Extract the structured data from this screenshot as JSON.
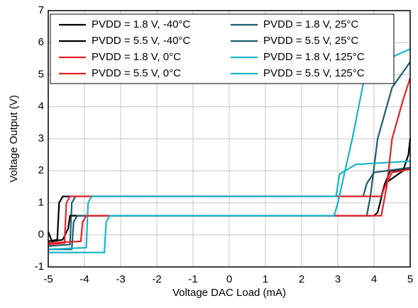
{
  "chart_data": {
    "type": "line",
    "x_label": "Voltage DAC Load (mA)",
    "y_label": "Voltage Output (V)",
    "xlim": [
      -5,
      5
    ],
    "ylim": [
      -1,
      7
    ],
    "xticks": [
      -5,
      -4,
      -3,
      -2,
      -1,
      0,
      1,
      2,
      3,
      4,
      5
    ],
    "yticks": [
      -1,
      0,
      1,
      2,
      3,
      4,
      5,
      6,
      7
    ],
    "grid": true,
    "legend": "upper left",
    "series": [
      {
        "name": "PVDD = 1.8 V, -40°C",
        "color": "#000000",
        "x": [
          -5,
          -4.75,
          -4.7,
          -4.6,
          4.2,
          4.3,
          4.45,
          5
        ],
        "values": [
          -0.2,
          -0.15,
          1.0,
          1.2,
          1.2,
          1.6,
          2.0,
          2.05
        ]
      },
      {
        "name": "PVDD = 1.8 V, 25°C",
        "color": "#1d5c6e",
        "x": [
          -5,
          -4.4,
          -4.35,
          -4.25,
          3.7,
          3.8,
          4.0,
          5
        ],
        "values": [
          -0.35,
          -0.3,
          1.0,
          1.2,
          1.2,
          1.6,
          1.95,
          2.1
        ]
      },
      {
        "name": "PVDD = 5.5 V, -40°C",
        "color": "#000000",
        "x": [
          -5,
          -4.9,
          -4.6,
          -4.45,
          -4.4,
          4.0,
          4.1,
          4.3,
          4.8,
          4.95,
          5
        ],
        "values": [
          0.1,
          -0.2,
          -0.15,
          0.2,
          0.6,
          0.6,
          0.7,
          1.6,
          2.0,
          2.5,
          3.0
        ]
      },
      {
        "name": "PVDD = 5.5 V, 25°C",
        "color": "#1d5c6e",
        "x": [
          -5,
          -4.35,
          -4.3,
          -4.2,
          3.8,
          3.9,
          4.1,
          4.5,
          5
        ],
        "values": [
          -0.45,
          -0.45,
          0.4,
          0.6,
          0.6,
          1.2,
          3.0,
          4.6,
          5.4
        ]
      },
      {
        "name": "PVDD = 1.8 V, 0°C",
        "color": "#e8202a",
        "x": [
          -5,
          -4.55,
          -4.5,
          -4.4,
          4.2,
          4.3,
          4.5,
          5
        ],
        "values": [
          -0.3,
          -0.25,
          1.0,
          1.2,
          1.2,
          1.5,
          1.95,
          2.05
        ]
      },
      {
        "name": "PVDD = 1.8 V, 125°C",
        "color": "#17b5c9",
        "x": [
          -5,
          -3.95,
          -3.9,
          -3.8,
          2.95,
          3.05,
          3.5,
          5
        ],
        "values": [
          -0.45,
          -0.4,
          1.0,
          1.2,
          1.2,
          1.9,
          2.2,
          2.3
        ]
      },
      {
        "name": "PVDD = 5.5 V, 0°C",
        "color": "#e8202a",
        "x": [
          -5,
          -4.1,
          -4.05,
          -3.95,
          4.2,
          4.35,
          4.5,
          4.8,
          5
        ],
        "values": [
          -0.25,
          -0.2,
          0.4,
          0.6,
          0.6,
          1.5,
          3.0,
          4.2,
          4.9
        ]
      },
      {
        "name": "PVDD = 5.5 V, 125°C",
        "color": "#17b5c9",
        "x": [
          -5,
          -3.45,
          -3.4,
          -3.3,
          2.9,
          3.0,
          3.4,
          3.7,
          4.2,
          5
        ],
        "values": [
          -0.55,
          -0.55,
          0.4,
          0.6,
          0.6,
          1.0,
          3.0,
          4.7,
          5.4,
          5.8
        ]
      }
    ]
  }
}
